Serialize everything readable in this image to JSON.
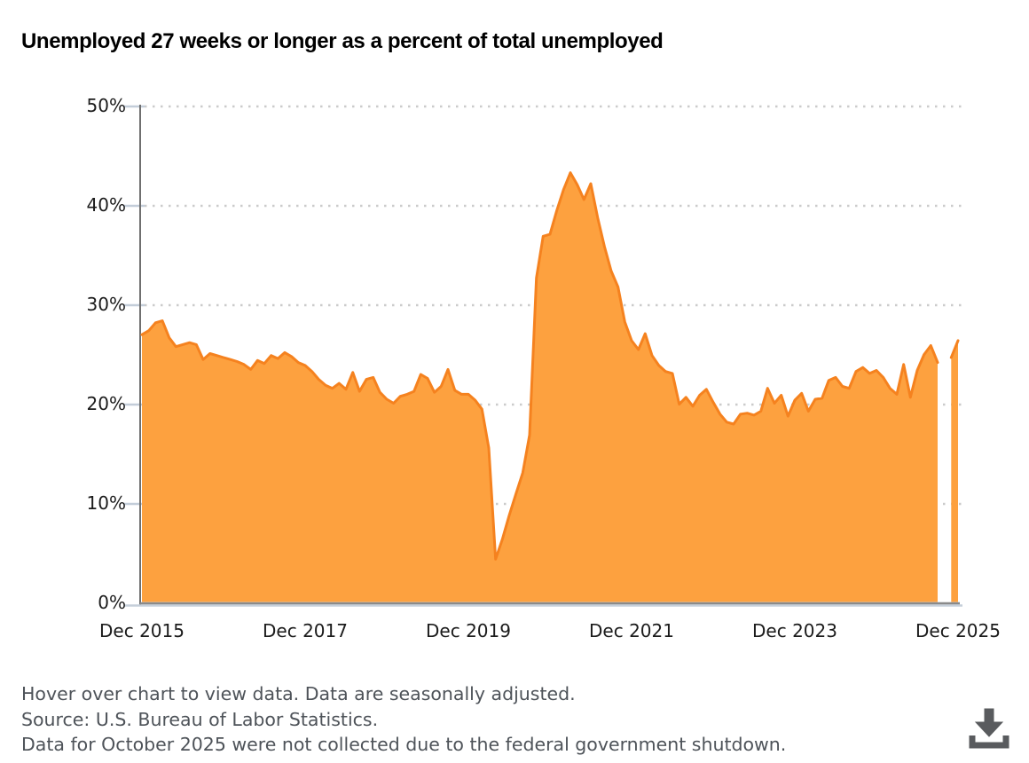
{
  "header": {
    "title": "Unemployed 27 weeks or longer as a percent of total unemployed"
  },
  "chart_data": {
    "type": "area",
    "title": "Unemployed 27 weeks or longer as a percent of total unemployed",
    "x_frequency": "monthly",
    "x_range": [
      "Dec 2015",
      "Dec 2025"
    ],
    "x_tick_labels": [
      "Dec 2015",
      "Dec 2017",
      "Dec 2019",
      "Dec 2021",
      "Dec 2023",
      "Dec 2025"
    ],
    "x_tick_month_index": [
      0,
      24,
      48,
      72,
      96,
      120
    ],
    "y_tick_labels": [
      "0%",
      "10%",
      "20%",
      "30%",
      "40%",
      "50%"
    ],
    "ylim": [
      0,
      50
    ],
    "grid": "horizontal-dotted",
    "legend": "none",
    "missing_data_note": "Oct 2025 value is null (not collected)",
    "series": [
      {
        "name": "Unemployed 27 weeks or longer as a percent of total unemployed",
        "unit": "%",
        "start": "Dec 2015",
        "values": [
          26.9,
          27.3,
          28.1,
          28.3,
          26.6,
          25.7,
          25.9,
          26.1,
          25.9,
          24.4,
          25.0,
          24.8,
          24.6,
          24.4,
          24.2,
          23.9,
          23.4,
          24.3,
          24.0,
          24.8,
          24.5,
          25.1,
          24.7,
          24.1,
          23.8,
          23.2,
          22.4,
          21.8,
          21.5,
          22.0,
          21.4,
          23.1,
          21.2,
          22.4,
          22.6,
          21.1,
          20.4,
          20.0,
          20.7,
          20.9,
          21.2,
          22.9,
          22.5,
          21.1,
          21.7,
          23.4,
          21.3,
          20.9,
          20.9,
          20.3,
          19.4,
          15.5,
          4.3,
          6.3,
          8.7,
          10.9,
          13.0,
          16.8,
          32.6,
          36.8,
          37.0,
          39.4,
          41.5,
          43.2,
          42.0,
          40.5,
          42.1,
          38.7,
          35.8,
          33.3,
          31.7,
          28.2,
          26.3,
          25.4,
          27.0,
          24.8,
          23.8,
          23.2,
          23.0,
          19.9,
          20.6,
          19.7,
          20.8,
          21.4,
          20.1,
          18.9,
          18.1,
          17.9,
          18.9,
          19.0,
          18.8,
          19.2,
          21.5,
          20.0,
          20.8,
          18.7,
          20.3,
          21.0,
          19.2,
          20.4,
          20.5,
          22.3,
          22.6,
          21.7,
          21.5,
          23.2,
          23.6,
          23.0,
          23.3,
          22.6,
          21.5,
          20.9,
          23.9,
          20.6,
          23.3,
          24.9,
          25.8,
          24.1,
          null,
          24.6,
          26.3
        ]
      }
    ],
    "colors": {
      "area_fill": "#FDA13F",
      "area_line": "#F5821F",
      "axis_line": "#6F6F6F",
      "grid_dots": "#CBCBCB",
      "tick": "#C3CDD9",
      "baseline_dark": "#8A8A8A",
      "baseline_light": "#C6CFDA"
    }
  },
  "footer": {
    "lines": [
      "Hover over chart to view data. Data are seasonally adjusted.",
      "Source: U.S. Bureau of Labor Statistics.",
      "Data for October 2025 were not collected due to the federal government shutdown."
    ],
    "download_icon": "download",
    "icon_color": "#595B5E"
  }
}
